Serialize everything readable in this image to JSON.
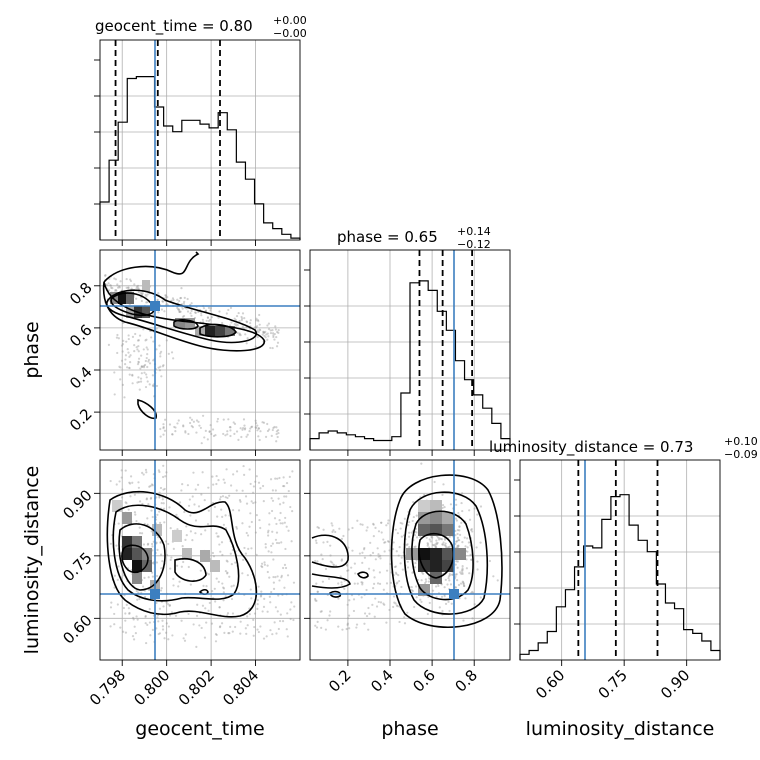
{
  "chart_data": {
    "type": "corner",
    "parameters": [
      "geocent_time",
      "phase",
      "luminosity_distance"
    ],
    "truths": {
      "geocent_time": 0.7994,
      "phase": 0.71,
      "luminosity_distance": 0.645
    },
    "titles": {
      "geocent_time": {
        "label": "geocent_time = 0.80",
        "plus": "+0.00",
        "minus": "−0.00"
      },
      "phase": {
        "label": "phase = 0.65",
        "plus": "+0.14",
        "minus": "−0.12"
      },
      "luminosity_distance": {
        "label": "luminosity_distance = 0.73",
        "plus": "+0.10",
        "minus": "−0.09"
      }
    },
    "axes": {
      "geocent_time": {
        "range": [
          0.797,
          0.806
        ],
        "ticks": [
          0.798,
          0.8,
          0.802,
          0.804
        ],
        "ticklabels": [
          "0.798",
          "0.800",
          "0.802",
          "0.804"
        ]
      },
      "phase": {
        "range": [
          0.02,
          0.97
        ],
        "ticks": [
          0.2,
          0.4,
          0.6,
          0.8
        ],
        "ticklabels": [
          "0.2",
          "0.4",
          "0.6",
          "0.8"
        ]
      },
      "luminosity_distance": {
        "range": [
          0.5,
          0.98
        ],
        "ticks": [
          0.6,
          0.75,
          0.9
        ],
        "ticklabels": [
          "0.60",
          "0.75",
          "0.90"
        ]
      }
    },
    "quantiles": {
      "geocent_time": [
        0.7977,
        0.7996,
        0.8024
      ],
      "phase": [
        0.54,
        0.65,
        0.79
      ],
      "luminosity_distance": [
        0.64,
        0.73,
        0.83
      ]
    },
    "histograms": {
      "geocent_time": [
        0.2,
        0.42,
        0.62,
        0.85,
        0.86,
        0.86,
        0.7,
        0.6,
        0.57,
        0.63,
        0.63,
        0.61,
        0.59,
        0.67,
        0.58,
        0.41,
        0.32,
        0.19,
        0.09,
        0.06,
        0.03,
        0.01
      ],
      "phase": [
        0.06,
        0.09,
        0.1,
        0.09,
        0.08,
        0.07,
        0.06,
        0.05,
        0.05,
        0.07,
        0.3,
        0.88,
        0.89,
        0.84,
        0.73,
        0.63,
        0.47,
        0.37,
        0.29,
        0.22,
        0.14,
        0.06
      ],
      "luminosity_distance": [
        0.03,
        0.05,
        0.09,
        0.15,
        0.28,
        0.37,
        0.49,
        0.6,
        0.59,
        0.74,
        0.86,
        0.87,
        0.71,
        0.63,
        0.57,
        0.4,
        0.3,
        0.27,
        0.16,
        0.14,
        0.1,
        0.05
      ]
    }
  }
}
